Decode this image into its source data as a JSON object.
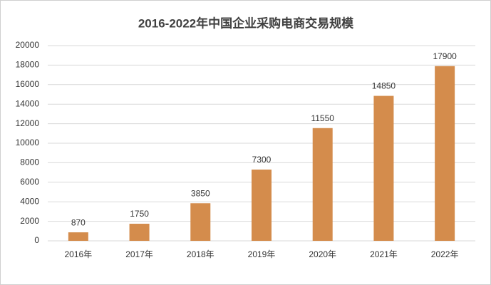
{
  "chart_data": {
    "type": "bar",
    "title": "2016-2022年中国企业采购电商交易规模",
    "categories": [
      "2016年",
      "2017年",
      "2018年",
      "2019年",
      "2020年",
      "2021年",
      "2022年"
    ],
    "values": [
      870,
      1750,
      3850,
      7300,
      11550,
      14850,
      17900
    ],
    "color": "#d48c4c",
    "ylim": [
      0,
      20000
    ],
    "yticks": [
      0,
      2000,
      4000,
      6000,
      8000,
      10000,
      12000,
      14000,
      16000,
      18000,
      20000
    ],
    "grid": true,
    "data_labels": true
  }
}
